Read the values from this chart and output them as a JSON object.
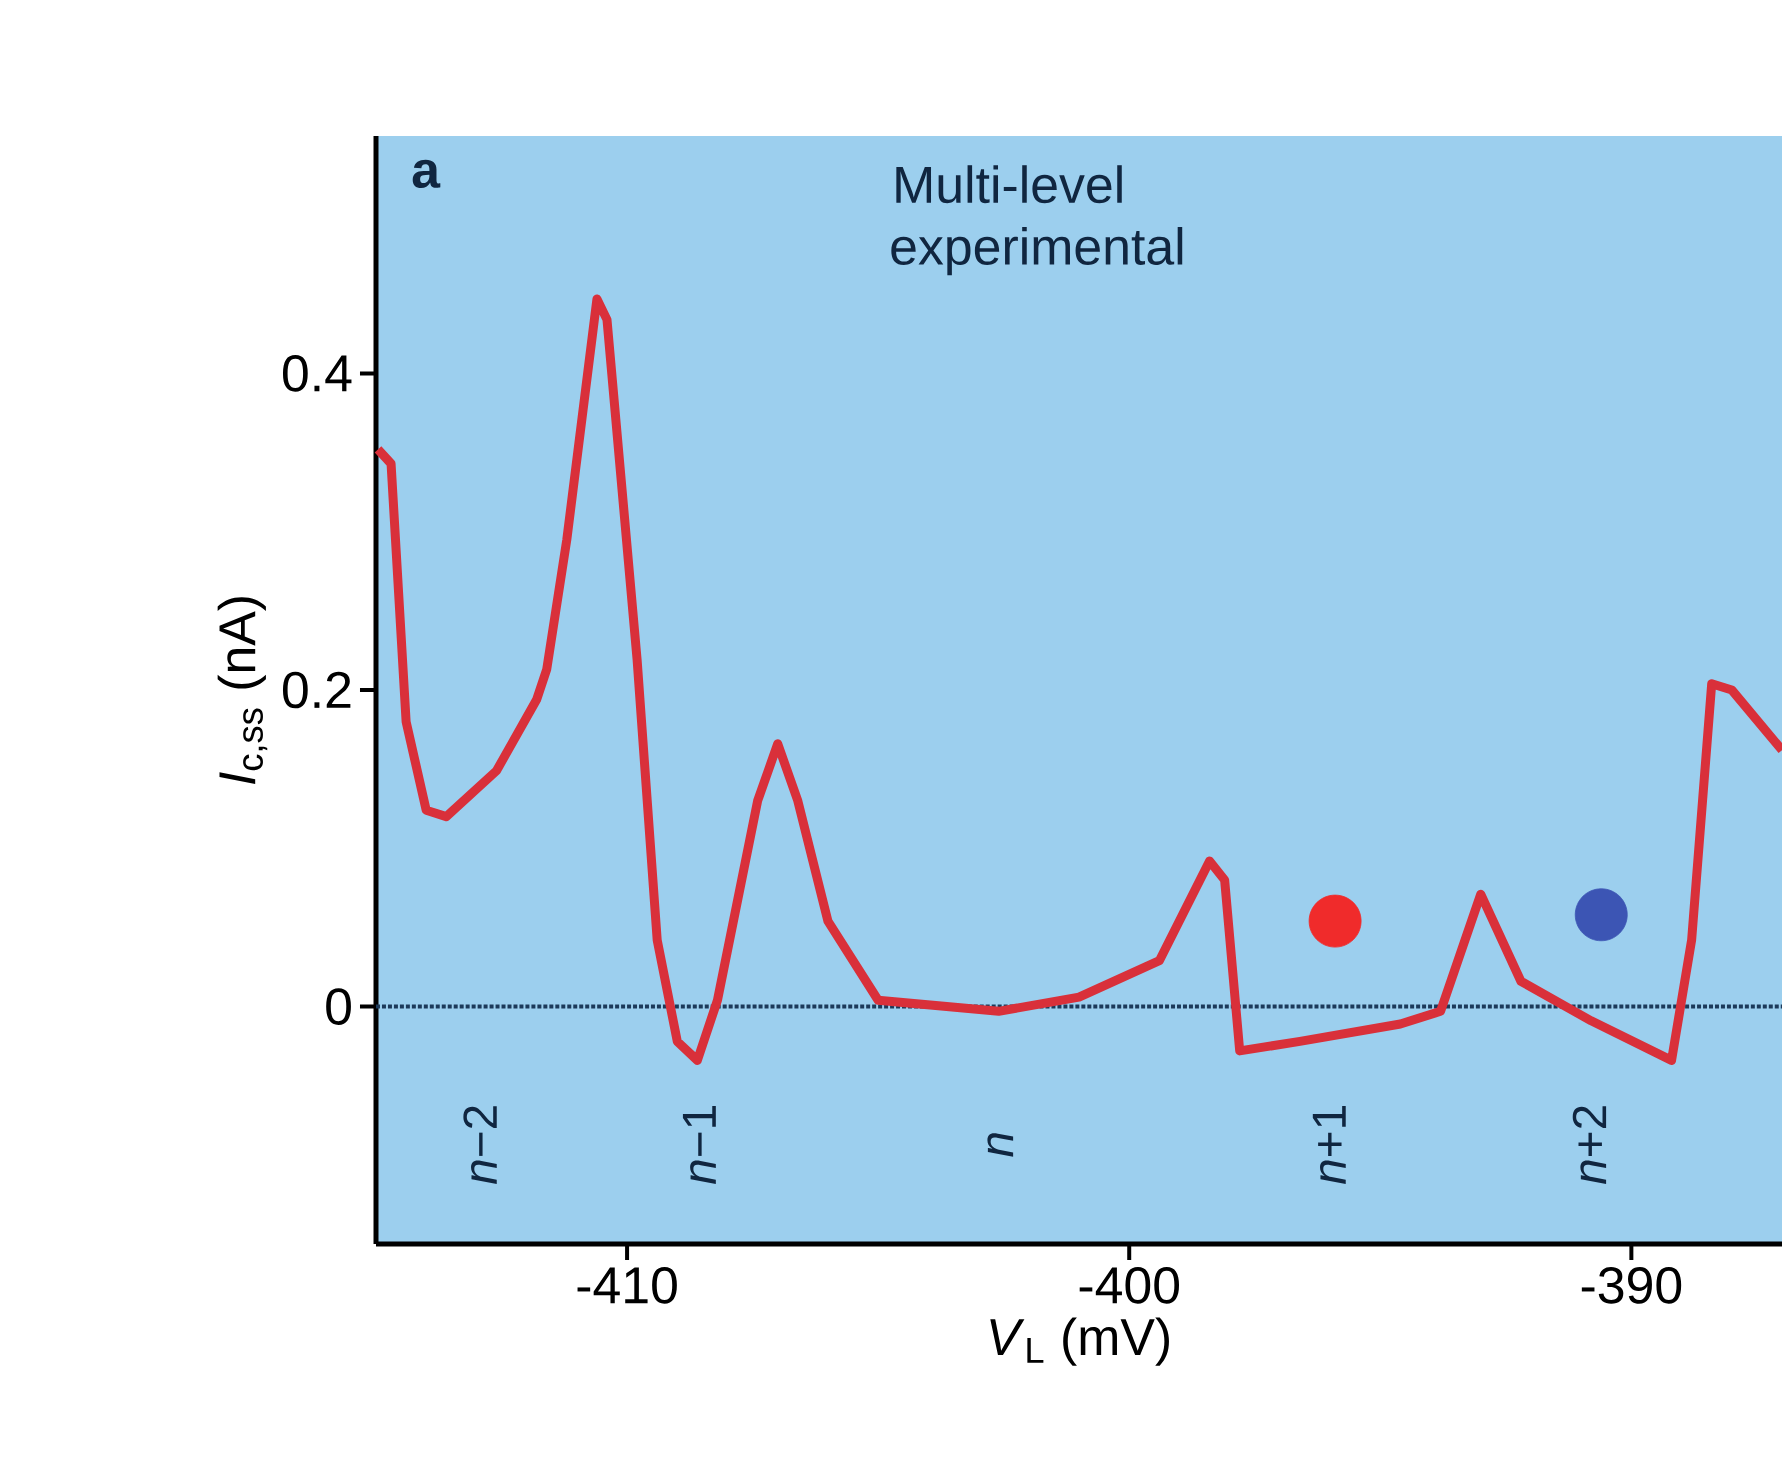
{
  "chart_data": {
    "type": "line",
    "title": "Multi-level experimental",
    "xlabel": "*V*$_{L}$ (mV)",
    "ylabel": "*I*$_{c,ss}$ (nA)",
    "xlim": [
      -415,
      -387
    ],
    "ylim": [
      -0.15,
      0.55
    ],
    "xticks": [
      -410,
      -400,
      -390
    ],
    "yticks": [
      0,
      0.2,
      0.4
    ],
    "series": [
      {
        "color": "#d9303a",
        "x": [
          -414.96,
          -414.7,
          -414.4,
          -414.0,
          -413.6,
          -412.6,
          -411.8,
          -411.6,
          -411.2,
          -410.6,
          -410.4,
          -409.8,
          -409.4,
          -409.0,
          -408.6,
          -408.2,
          -407.4,
          -407.0,
          -406.6,
          -406.0,
          -405.0,
          -402.6,
          -401.0,
          -399.4,
          -398.4,
          -398.1,
          -397.8,
          -396.6,
          -394.6,
          -393.8,
          -393.0,
          -392.2,
          -390.8,
          -389.2,
          -388.8,
          -388.4,
          -388.0,
          -387.0
        ],
        "values": [
          0.352,
          0.343,
          0.18,
          0.124,
          0.12,
          0.149,
          0.194,
          0.213,
          0.295,
          0.447,
          0.434,
          0.219,
          0.042,
          -0.022,
          -0.034,
          0.004,
          0.13,
          0.166,
          0.13,
          0.054,
          0.004,
          -0.003,
          0.006,
          0.029,
          0.092,
          0.08,
          -0.028,
          -0.022,
          -0.011,
          -0.003,
          0.071,
          0.016,
          -0.009,
          -0.034,
          0.042,
          0.204,
          0.2,
          0.162
        ]
      },
      {
        "type": "scatter",
        "x": [
          -395.9,
          -390.6
        ],
        "values": [
          0.054,
          0.058
        ],
        "colors": [
          "#f02b2b",
          "#3c55b4"
        ],
        "marker": "circle"
      }
    ],
    "ref_lines": [
      {
        "axis": "y",
        "value": 0,
        "color": "#1c3a5a",
        "line_style": "dotted"
      }
    ],
    "annotations": [
      "a",
      "*n*−2",
      "*n*−1",
      "*n*",
      "*n*+1",
      "*n*+2"
    ]
  }
}
